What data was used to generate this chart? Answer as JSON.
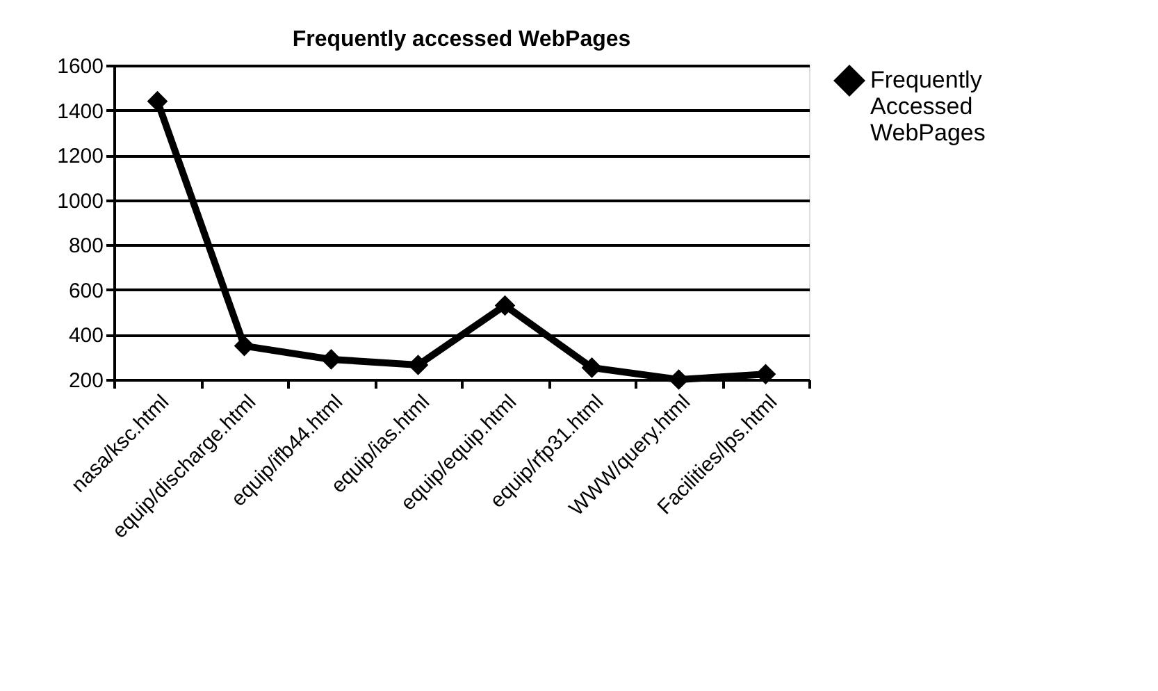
{
  "chart_data": {
    "type": "line",
    "title": "Frequently accessed WebPages",
    "categories": [
      "nasa/ksc.html",
      "equip/discharge.html",
      "equip/ifb44.html",
      "equip/ias.html",
      "equip/equip.html",
      "equip/rfp31.html",
      "WWW/query.html",
      "Facilities/lps.html"
    ],
    "series": [
      {
        "name": "Frequently Accessed WebPages",
        "color": "#000000",
        "values": [
          1440,
          350,
          290,
          265,
          530,
          253,
          200,
          224
        ]
      }
    ],
    "ylim": [
      200,
      1600
    ],
    "yticks": [
      200,
      400,
      600,
      800,
      1000,
      1200,
      1400,
      1600
    ],
    "grid": "y",
    "legend": "right",
    "marker": "diamond",
    "line_style": "solid"
  }
}
